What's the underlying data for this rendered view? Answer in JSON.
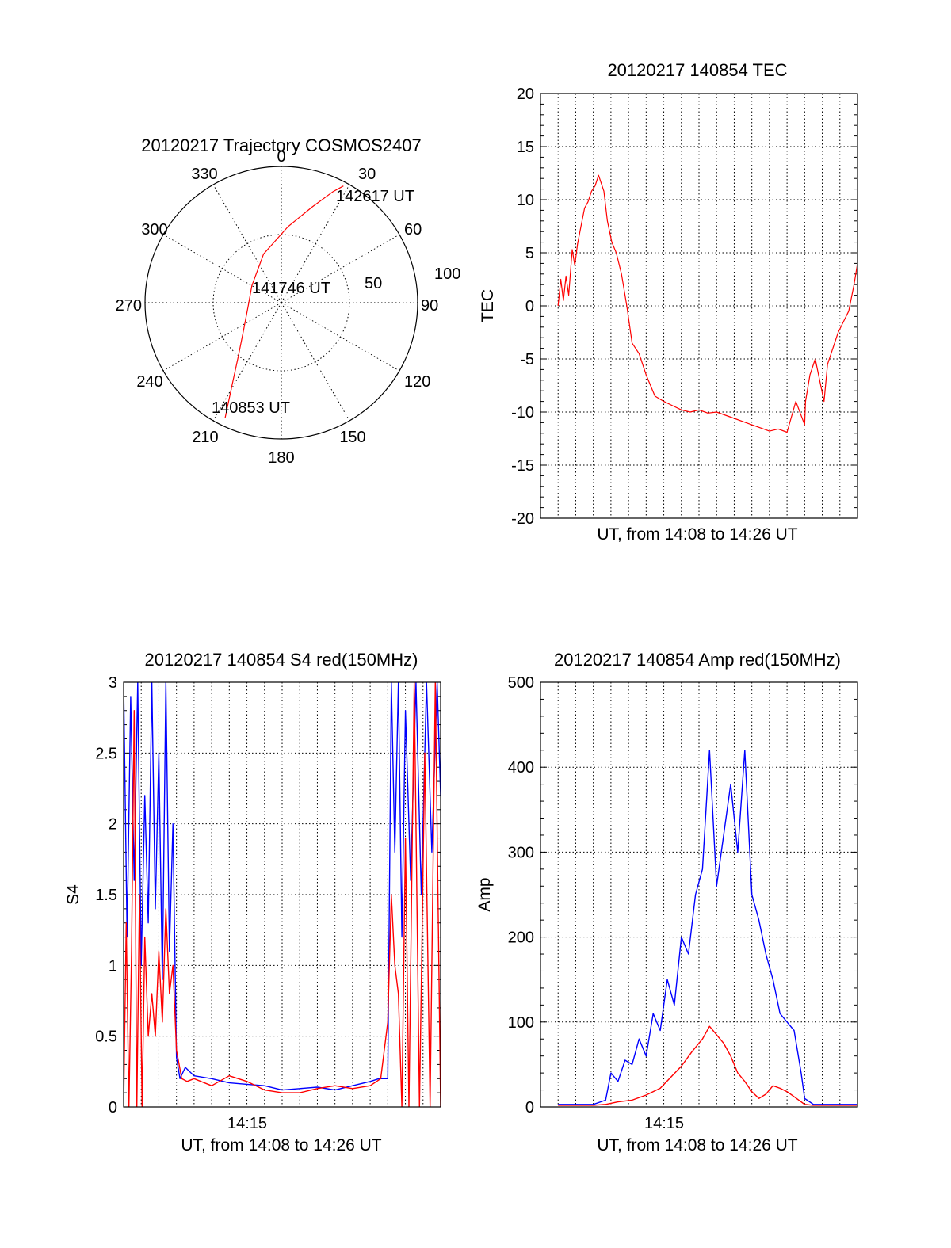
{
  "chart_data": [
    {
      "id": "trajectory",
      "type": "polar",
      "title": "20120217 Trajectory COSMOS2407",
      "azimuth_labels": [
        "0",
        "30",
        "60",
        "90",
        "120",
        "150",
        "180",
        "210",
        "240",
        "270",
        "300",
        "330"
      ],
      "radius_labels": [
        "50",
        "100"
      ],
      "rlim": [
        0,
        100
      ],
      "series": [
        {
          "color": "#ff0000",
          "points": [
            {
              "az": 206,
              "r": 94
            },
            {
              "az": 211,
              "r": 70
            },
            {
              "az": 219,
              "r": 50
            },
            {
              "az": 236,
              "r": 33
            },
            {
              "az": 268,
              "r": 24
            },
            {
              "az": 300,
              "r": 25
            },
            {
              "az": 340,
              "r": 38
            },
            {
              "az": 5,
              "r": 56
            },
            {
              "az": 18,
              "r": 74
            },
            {
              "az": 25,
              "r": 90
            },
            {
              "az": 28,
              "r": 97
            }
          ]
        }
      ],
      "annotations": [
        "142617 UT",
        "141746 UT",
        "140853 UT"
      ]
    },
    {
      "id": "tec",
      "type": "line",
      "title": "20120217 140854 TEC",
      "xlabel": "UT, from 14:08 to 14:26 UT",
      "ylabel": "TEC",
      "xlim": [
        0,
        18
      ],
      "ylim": [
        -20,
        20
      ],
      "yticks": [
        "20",
        "15",
        "10",
        "5",
        "0",
        "-5",
        "-10",
        "-15",
        "-20"
      ],
      "series": [
        {
          "color": "#ff0000",
          "x": [
            1,
            1.15,
            1.3,
            1.45,
            1.6,
            1.8,
            1.95,
            2.1,
            2.3,
            2.5,
            2.7,
            2.9,
            3.1,
            3.3,
            3.6,
            3.8,
            4.05,
            4.3,
            4.6,
            4.9,
            5.2,
            5.6,
            6.0,
            6.5,
            7.0,
            7.5,
            8.0,
            8.5,
            9.0,
            9.5,
            10.0,
            10.5,
            11.0,
            11.5,
            12.0,
            12.5,
            13.0,
            13.5,
            14.0,
            14.5,
            15.0,
            15.05,
            15.3,
            15.6,
            15.85,
            16.1,
            16.3,
            16.6,
            16.9,
            17.2,
            17.5,
            17.8,
            18.0
          ],
          "values": [
            0,
            2.5,
            0.5,
            2.8,
            1.0,
            5.3,
            3.8,
            5.8,
            7.5,
            9.2,
            9.8,
            10.8,
            11.3,
            12.3,
            10.8,
            8.0,
            6.0,
            5.0,
            3.0,
            0,
            -3.5,
            -4.5,
            -6.5,
            -8.5,
            -9.0,
            -9.4,
            -9.8,
            -10.0,
            -9.8,
            -10.1,
            -10.0,
            -10.3,
            -10.6,
            -10.9,
            -11.2,
            -11.5,
            -11.8,
            -11.6,
            -11.9,
            -9.0,
            -11.2,
            -9.0,
            -6.5,
            -5.0,
            -7.0,
            -9.0,
            -5.5,
            -4.0,
            -2.5,
            -1.5,
            -0.5,
            2.0,
            4.0
          ]
        }
      ]
    },
    {
      "id": "s4",
      "type": "line",
      "title": "20120217 140854 S4 red(150MHz)",
      "xlabel": "UT, from 14:08 to 14:26 UT",
      "ylabel": "S4",
      "xlim": [
        0,
        18
      ],
      "ylim": [
        0,
        3
      ],
      "yticks": [
        "3",
        "2.5",
        "2",
        "1.5",
        "1",
        "0.5",
        "0"
      ],
      "xtick_labels": [
        "14:15"
      ],
      "series": [
        {
          "color": "#0000ff",
          "x": [
            0,
            0.2,
            0.4,
            0.6,
            0.8,
            1.0,
            1.2,
            1.4,
            1.6,
            1.8,
            2.0,
            2.2,
            2.4,
            2.6,
            2.8,
            3.0,
            3.2,
            3.5,
            4,
            5,
            6,
            7,
            8,
            9,
            10,
            11,
            12,
            13,
            14,
            14.5,
            15.0,
            15.2,
            15.4,
            15.6,
            15.8,
            16.0,
            16.3,
            16.6,
            16.9,
            17.2,
            17.5,
            17.8,
            18.0
          ],
          "values": [
            3,
            1.2,
            2.9,
            1.6,
            3.0,
            1.0,
            2.2,
            1.3,
            3.0,
            1.4,
            2.5,
            0.9,
            3.0,
            1.1,
            2.0,
            0.35,
            0.2,
            0.28,
            0.22,
            0.2,
            0.17,
            0.16,
            0.15,
            0.12,
            0.13,
            0.14,
            0.12,
            0.15,
            0.18,
            0.2,
            0.2,
            3.0,
            1.8,
            3.0,
            1.2,
            2.8,
            1.6,
            3.0,
            1.5,
            3.0,
            1.8,
            3.0,
            2.2
          ]
        },
        {
          "color": "#ff0000",
          "x": [
            0,
            0.15,
            0.3,
            0.45,
            0.6,
            0.75,
            0.9,
            1.05,
            1.2,
            1.4,
            1.6,
            1.8,
            2.0,
            2.2,
            2.4,
            2.6,
            2.8,
            3.0,
            3.3,
            3.6,
            4,
            5,
            6,
            7,
            8,
            9,
            10,
            11,
            12,
            13,
            14,
            14.6,
            15.0,
            15.2,
            15.4,
            15.6,
            15.8,
            16.0,
            16.2,
            16.5,
            16.8,
            17.1,
            17.4,
            17.7,
            18.0
          ],
          "values": [
            0,
            1.3,
            0,
            1.1,
            2.8,
            0,
            1.5,
            0,
            1.2,
            0.5,
            0.8,
            0.5,
            1.1,
            0.6,
            1.4,
            0.8,
            1.0,
            0.4,
            0.2,
            0.18,
            0.2,
            0.15,
            0.22,
            0.18,
            0.12,
            0.1,
            0.1,
            0.13,
            0.15,
            0.13,
            0.15,
            0.2,
            0.6,
            1.5,
            1.0,
            0.8,
            0,
            1.9,
            0,
            3.0,
            0,
            2.5,
            0,
            3.0,
            0
          ]
        }
      ]
    },
    {
      "id": "amp",
      "type": "line",
      "title": "20120217 140854 Amp red(150MHz)",
      "xlabel": "UT, from 14:08 to 14:26 UT",
      "ylabel": "Amp",
      "xlim": [
        0,
        18
      ],
      "ylim": [
        0,
        500
      ],
      "yticks": [
        "500",
        "400",
        "300",
        "200",
        "100",
        "0"
      ],
      "xtick_labels": [
        "14:15"
      ],
      "series": [
        {
          "color": "#0000ff",
          "x": [
            1,
            2,
            3,
            3.7,
            4.0,
            4.4,
            4.8,
            5.2,
            5.6,
            6.0,
            6.4,
            6.8,
            7.2,
            7.6,
            8.0,
            8.4,
            8.8,
            9.2,
            9.6,
            10.0,
            10.4,
            10.8,
            11.2,
            11.6,
            12.0,
            12.4,
            12.8,
            13.2,
            13.6,
            14.0,
            14.4,
            14.8,
            15.0,
            15.5,
            16,
            17,
            18
          ],
          "values": [
            3,
            3,
            3,
            8,
            40,
            30,
            55,
            50,
            80,
            60,
            110,
            90,
            150,
            120,
            200,
            180,
            250,
            280,
            420,
            260,
            320,
            380,
            300,
            420,
            250,
            220,
            180,
            150,
            110,
            100,
            90,
            40,
            10,
            3,
            3,
            3,
            3
          ]
        },
        {
          "color": "#ff0000",
          "x": [
            1,
            3,
            3.7,
            4.4,
            5.2,
            6.0,
            6.8,
            7.4,
            8.0,
            8.6,
            9.2,
            9.6,
            10.0,
            10.4,
            10.8,
            11.2,
            11.6,
            12.0,
            12.4,
            12.8,
            13.2,
            13.6,
            14.0,
            14.4,
            14.8,
            15.0,
            15.5,
            18
          ],
          "values": [
            2,
            2,
            3,
            6,
            8,
            14,
            22,
            35,
            48,
            65,
            80,
            95,
            85,
            75,
            60,
            40,
            30,
            18,
            10,
            15,
            25,
            22,
            18,
            12,
            6,
            3,
            2,
            2
          ]
        }
      ]
    }
  ]
}
